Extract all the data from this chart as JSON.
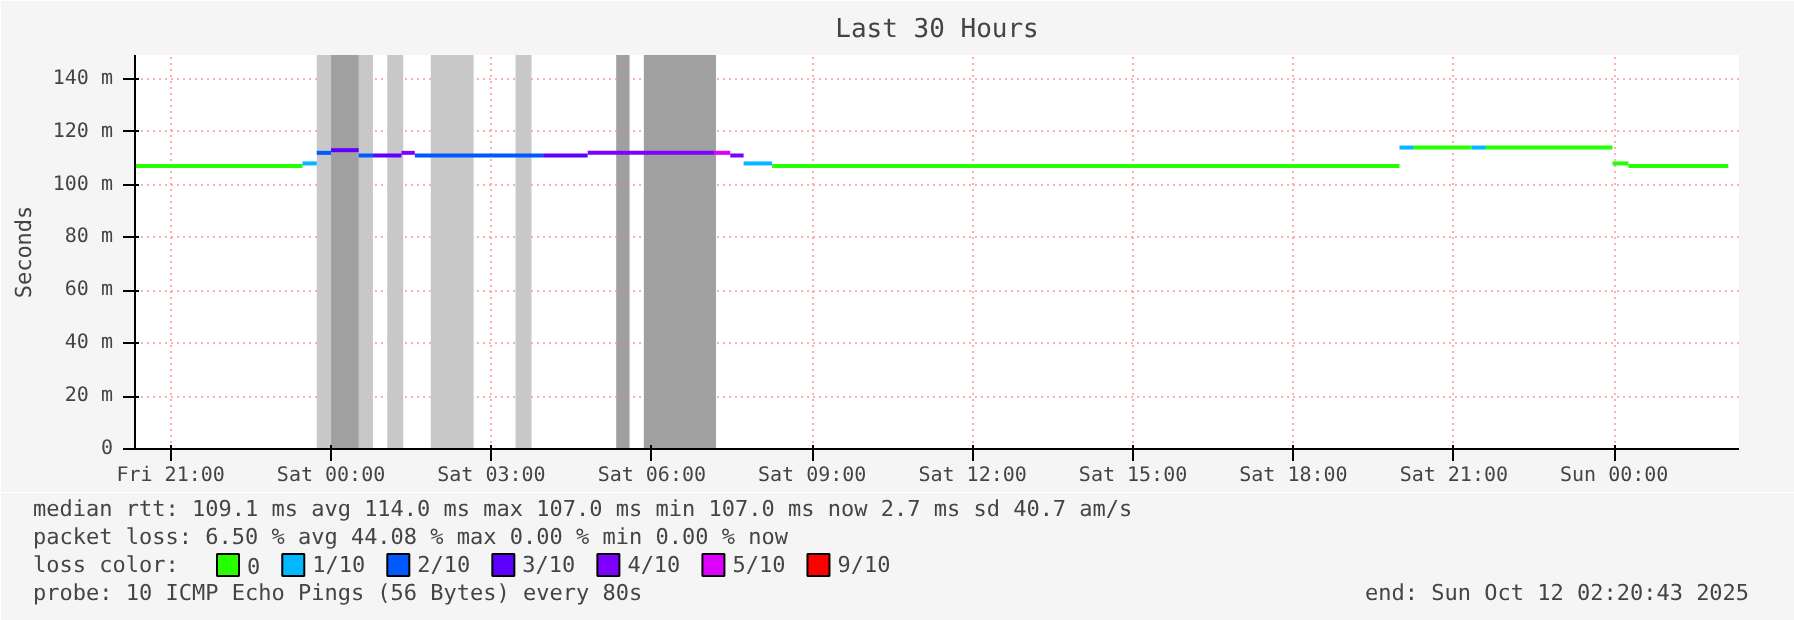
{
  "chart_data": {
    "type": "line",
    "title": "Last 30 Hours",
    "ylabel": "Seconds",
    "legend_title": "loss color:",
    "xlim": [
      "2025-10-10T20:20",
      "2025-10-12T02:20"
    ],
    "ylim": [
      0,
      149
    ],
    "xticks": [
      {
        "value": "2025-10-10T21:00",
        "label": "Fri 21:00"
      },
      {
        "value": "2025-10-11T00:00",
        "label": "Sat 00:00"
      },
      {
        "value": "2025-10-11T03:00",
        "label": "Sat 03:00"
      },
      {
        "value": "2025-10-11T06:00",
        "label": "Sat 06:00"
      },
      {
        "value": "2025-10-11T09:00",
        "label": "Sat 09:00"
      },
      {
        "value": "2025-10-11T12:00",
        "label": "Sat 12:00"
      },
      {
        "value": "2025-10-11T15:00",
        "label": "Sat 15:00"
      },
      {
        "value": "2025-10-11T18:00",
        "label": "Sat 18:00"
      },
      {
        "value": "2025-10-11T21:00",
        "label": "Sat 21:00"
      },
      {
        "value": "2025-10-12T00:00",
        "label": "Sun 00:00"
      }
    ],
    "yticks": [
      0,
      {
        "value": 20,
        "label": "20 m"
      },
      {
        "value": 40,
        "label": "40 m"
      },
      {
        "value": 60,
        "label": "60 m"
      },
      {
        "value": 80,
        "label": "80 m"
      },
      {
        "value": 100,
        "label": "100 m"
      },
      {
        "value": 120,
        "label": "120 m"
      },
      {
        "value": 140,
        "label": "140 m"
      }
    ],
    "grid": true,
    "legend": "bottom",
    "marker": "none",
    "line_style": "solid",
    "bands": [
      {
        "axis": "x",
        "from": "2025-10-10T23:44",
        "to": "2025-10-11T00:47",
        "color": "#c8c8c8"
      },
      {
        "axis": "x",
        "from": "2025-10-11T01:03",
        "to": "2025-10-11T01:21",
        "color": "#c8c8c8"
      },
      {
        "axis": "x",
        "from": "2025-10-11T01:52",
        "to": "2025-10-11T02:40",
        "color": "#c8c8c8"
      },
      {
        "axis": "x",
        "from": "2025-10-11T03:27",
        "to": "2025-10-11T03:45",
        "color": "#c8c8c8"
      },
      {
        "axis": "x",
        "from": "2025-10-11T00:00",
        "to": "2025-10-11T00:31",
        "color": "#a0a0a0"
      },
      {
        "axis": "x",
        "from": "2025-10-11T05:20",
        "to": "2025-10-11T05:35",
        "color": "#a0a0a0"
      },
      {
        "axis": "x",
        "from": "2025-10-11T05:51",
        "to": "2025-10-11T07:12",
        "color": "#a0a0a0"
      }
    ],
    "series": [
      {
        "name": "0",
        "color": "#26ff00",
        "x": [
          "2025-10-10T20:20",
          "2025-10-10T23:28",
          "2025-10-11T08:15",
          "2025-10-11T19:59",
          "2025-10-11T20:15",
          "2025-10-11T21:20",
          "2025-10-11T21:36",
          "2025-10-11T23:58",
          "2025-10-11T23:58",
          "2025-10-12T00:16",
          "2025-10-12T00:16",
          "2025-10-12T02:08"
        ],
        "values": [
          107,
          107,
          107,
          107,
          114,
          114,
          114,
          114,
          108,
          108,
          107,
          107
        ]
      },
      {
        "name": "1/10",
        "color": "#00b8ff",
        "x": [
          "2025-10-10T23:28",
          "2025-10-10T23:44",
          "2025-10-11T07:43",
          "2025-10-11T08:15",
          "2025-10-11T19:59",
          "2025-10-11T20:15",
          "2025-10-11T21:20",
          "2025-10-11T21:36"
        ],
        "values": [
          108,
          108,
          108,
          108,
          114,
          114,
          114,
          114
        ]
      },
      {
        "name": "2/10",
        "color": "#0059ff",
        "x": [
          "2025-10-10T23:44",
          "2025-10-11T00:00",
          "2025-10-11T00:31",
          "2025-10-11T00:47",
          "2025-10-11T01:34",
          "2025-10-11T03:58"
        ],
        "values": [
          112,
          112,
          111,
          111,
          111,
          111
        ]
      },
      {
        "name": "3/10",
        "color": "#5e00ff",
        "x": [
          "2025-10-11T00:00",
          "2025-10-11T00:31",
          "2025-10-11T00:47",
          "2025-10-11T01:19",
          "2025-10-11T03:58",
          "2025-10-11T04:48"
        ],
        "values": [
          113,
          113,
          111,
          111,
          111,
          111
        ]
      },
      {
        "name": "4/10",
        "color": "#7e00ff",
        "x": [
          "2025-10-11T01:19",
          "2025-10-11T01:34",
          "2025-10-11T04:48",
          "2025-10-11T07:10",
          "2025-10-11T07:28",
          "2025-10-11T07:43"
        ],
        "values": [
          112,
          112,
          112,
          112,
          111,
          111
        ]
      },
      {
        "name": "5/10",
        "color": "#dd00ff",
        "x": [
          "2025-10-11T07:10",
          "2025-10-11T07:28"
        ],
        "values": [
          112,
          112
        ]
      },
      {
        "name": "9/10",
        "color": "#ff0000"
      }
    ],
    "annotations": [
      "median rtt:  109.1 ms avg  114.0 ms max  107.0 ms min  107.0 ms now  2.7 ms sd  40.7   am/s",
      "packet loss: 6.50 % avg  44.08 % max  0.00 % min  0.00 % now",
      "probe:       10 ICMP Echo Pings (56 Bytes) every 80s",
      "end: Sun Oct 12 02:20:43 2025"
    ]
  }
}
